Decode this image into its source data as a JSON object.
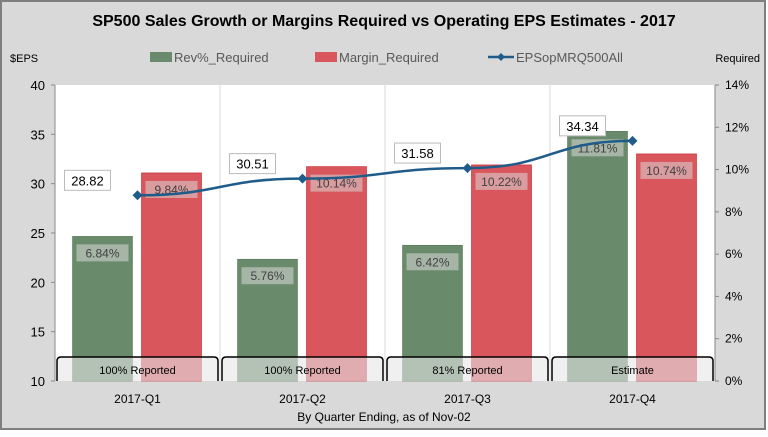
{
  "chart_data": {
    "type": "bar",
    "title": "SP500 Sales Growth or Margins Required vs Operating EPS Estimates - 2017",
    "xlabel": "By Quarter Ending, as of Nov-02",
    "ylabel_left": "$EPS",
    "ylabel_right": "Required",
    "categories": [
      "2017-Q1",
      "2017-Q2",
      "2017-Q3",
      "2017-Q4"
    ],
    "category_notes": [
      "100% Reported",
      "100% Reported",
      "81% Reported",
      "Estimate"
    ],
    "ylim_left": [
      10,
      40
    ],
    "yticks_left": [
      "10",
      "15",
      "20",
      "25",
      "30",
      "35",
      "40"
    ],
    "ylim_right": [
      0,
      14
    ],
    "yticks_right": [
      "0%",
      "2%",
      "4%",
      "6%",
      "8%",
      "10%",
      "12%",
      "14%"
    ],
    "legend_position": "top",
    "grid": "vertical",
    "series": [
      {
        "name": "Rev%_Required",
        "type": "bar",
        "axis": "right",
        "color": "#6a8a6c",
        "values": [
          6.84,
          5.76,
          6.42,
          11.81
        ],
        "labels": [
          "6.84%",
          "5.76%",
          "6.42%",
          "11.81%"
        ]
      },
      {
        "name": "Margin_Required",
        "type": "bar",
        "axis": "right",
        "color": "#d9565c",
        "values": [
          9.84,
          10.14,
          10.22,
          10.74
        ],
        "labels": [
          "9.84%",
          "10.14%",
          "10.22%",
          "10.74%"
        ]
      },
      {
        "name": "EPSopMRQ500All",
        "type": "line",
        "axis": "left",
        "color": "#1f5c8a",
        "values": [
          28.82,
          30.51,
          31.58,
          34.34
        ],
        "labels": [
          "28.82",
          "30.51",
          "31.58",
          "34.34"
        ]
      }
    ]
  }
}
